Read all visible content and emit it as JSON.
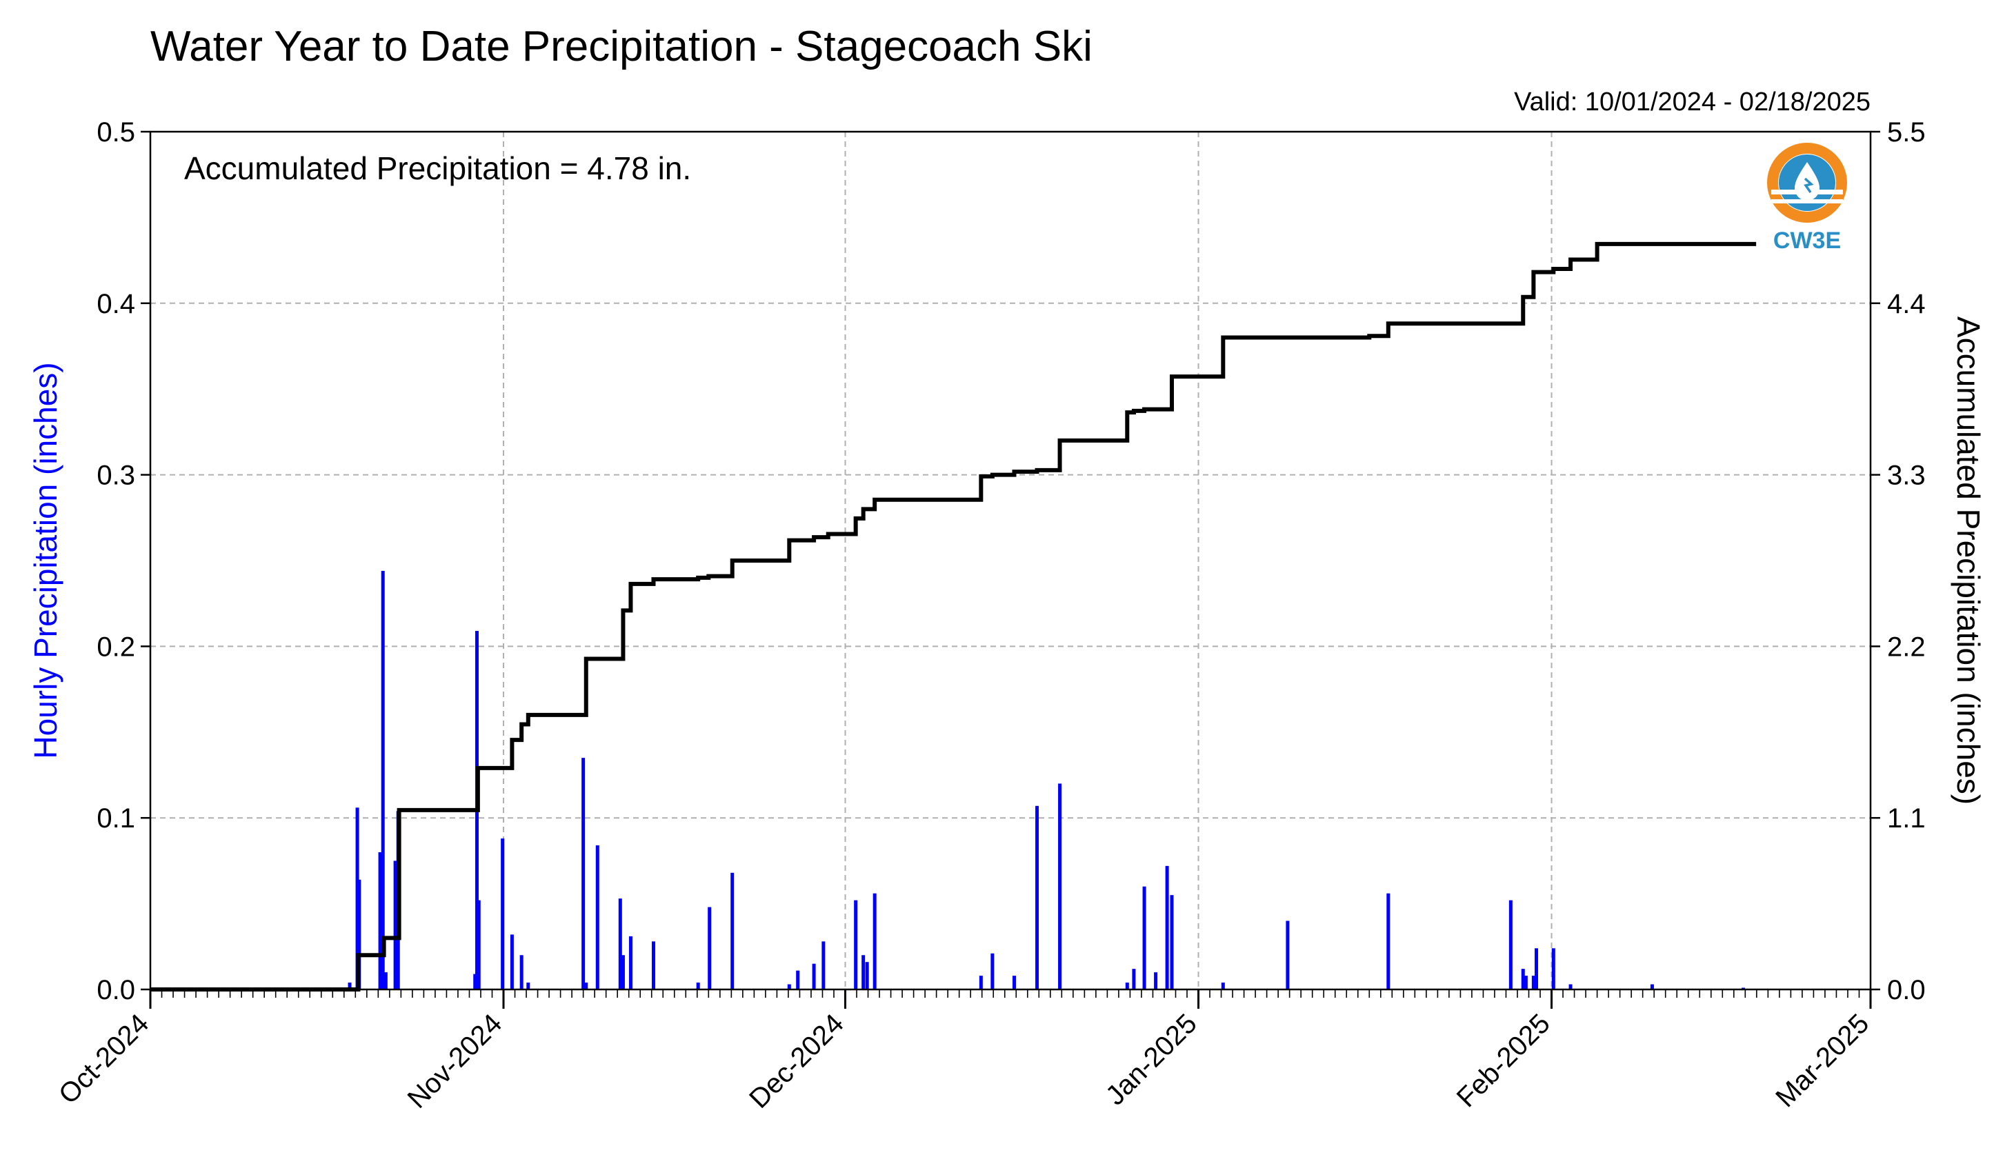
{
  "colors": {
    "hourly": "#0000ff",
    "accumulated": "#000000",
    "grid": "#b0b0b0",
    "logo_orange": "#f28c1e",
    "logo_blue": "#2a8fc7"
  },
  "logo": {
    "text": "CW3E",
    "icon": "water-drop-logo-icon"
  },
  "chart_data": {
    "type": "bar",
    "title": "Water Year to Date Precipitation - Stagecoach Ski",
    "subtitle": "Valid: 10/01/2024 - 02/18/2025",
    "annotation": "Accumulated Precipitation = 4.78 in.",
    "ylabel": "Hourly Precipitation (inches)",
    "y2label": "Accumulated Precipitation (inches)",
    "xlim": [
      "2024-10-01",
      "2025-03-01"
    ],
    "ylim": [
      0,
      0.5
    ],
    "y2lim": [
      0,
      5.5
    ],
    "yticks": [
      "0.0",
      "0.1",
      "0.2",
      "0.3",
      "0.4",
      "0.5"
    ],
    "y2ticks": [
      "0.0",
      "1.1",
      "2.2",
      "3.3",
      "4.4",
      "5.5"
    ],
    "xticks": [
      {
        "date": "2024-10-01",
        "label": "Oct-2024"
      },
      {
        "date": "2024-11-01",
        "label": "Nov-2024"
      },
      {
        "date": "2024-12-01",
        "label": "Dec-2024"
      },
      {
        "date": "2025-01-01",
        "label": "Jan-2025"
      },
      {
        "date": "2025-02-01",
        "label": "Feb-2025"
      },
      {
        "date": "2025-03-01",
        "label": "Mar-2025"
      }
    ],
    "grid": true,
    "series": [
      {
        "name": "Hourly Precipitation",
        "type": "bar",
        "axis": "left",
        "x": [
          "2024-10-18T12:00",
          "2024-10-19T04:00",
          "2024-10-19T08:00",
          "2024-10-21T04:00",
          "2024-10-21T10:00",
          "2024-10-21T16:00",
          "2024-10-22T12:00",
          "2024-10-22T18:00",
          "2024-10-29T12:00",
          "2024-10-29T16:00",
          "2024-10-29T20:00",
          "2024-10-31T22:00",
          "2024-11-01T18:00",
          "2024-11-02T14:00",
          "2024-11-03T04:00",
          "2024-11-08T00:00",
          "2024-11-08T06:00",
          "2024-11-09T06:00",
          "2024-11-11T06:00",
          "2024-11-11T12:00",
          "2024-11-12T04:00",
          "2024-11-14T04:00",
          "2024-11-18T02:00",
          "2024-11-19T02:00",
          "2024-11-21T02:00",
          "2024-11-26T02:00",
          "2024-11-26T20:00",
          "2024-11-28T06:00",
          "2024-11-29T02:00",
          "2024-12-01T22:00",
          "2024-12-02T14:00",
          "2024-12-02T22:00",
          "2024-12-03T14:00",
          "2024-12-12T22:00",
          "2024-12-13T22:00",
          "2024-12-15T20:00",
          "2024-12-17T20:00",
          "2024-12-19T20:00",
          "2024-12-25T18:00",
          "2024-12-26T08:00",
          "2024-12-27T06:00",
          "2024-12-28T06:00",
          "2024-12-29T06:00",
          "2024-12-29T16:00",
          "2025-01-03T04:00",
          "2025-01-08T20:00",
          "2025-01-17T16:00",
          "2025-01-28T10:00",
          "2025-01-29T12:00",
          "2025-01-29T18:00",
          "2025-01-30T10:00",
          "2025-01-30T16:00",
          "2025-02-01T04:00",
          "2025-02-02T16:00",
          "2025-02-09T20:00",
          "2025-02-17T20:00"
        ],
        "values": [
          0.004,
          0.106,
          0.064,
          0.08,
          0.244,
          0.01,
          0.075,
          0.104,
          0.009,
          0.209,
          0.052,
          0.088,
          0.032,
          0.02,
          0.004,
          0.135,
          0.004,
          0.084,
          0.053,
          0.02,
          0.031,
          0.028,
          0.004,
          0.048,
          0.068,
          0.003,
          0.011,
          0.015,
          0.028,
          0.052,
          0.02,
          0.016,
          0.056,
          0.008,
          0.021,
          0.008,
          0.107,
          0.12,
          0.004,
          0.012,
          0.06,
          0.01,
          0.072,
          0.055,
          0.004,
          0.04,
          0.056,
          0.052,
          0.012,
          0.008,
          0.008,
          0.024,
          0.024,
          0.003,
          0.003,
          0.001
        ]
      },
      {
        "name": "Accumulated Precipitation",
        "type": "line",
        "axis": "right",
        "x": [
          "2024-10-01T00:00",
          "2024-10-18T12:00",
          "2024-10-19T06:00",
          "2024-10-21T04:00",
          "2024-10-21T12:00",
          "2024-10-22T12:00",
          "2024-10-22T20:00",
          "2024-10-29T12:00",
          "2024-10-29T18:00",
          "2024-10-31T22:00",
          "2024-11-01T18:00",
          "2024-11-02T14:00",
          "2024-11-03T04:00",
          "2024-11-07T12:00",
          "2024-11-08T06:00",
          "2024-11-10T20:00",
          "2024-11-11T12:00",
          "2024-11-12T04:00",
          "2024-11-14T04:00",
          "2024-11-17T00:00",
          "2024-11-18T02:00",
          "2024-11-19T00:00",
          "2024-11-21T02:00",
          "2024-11-24T12:00",
          "2024-11-26T02:00",
          "2024-11-27T12:00",
          "2024-11-28T06:00",
          "2024-11-29T12:00",
          "2024-12-01T22:00",
          "2024-12-02T14:00",
          "2024-12-03T14:00",
          "2024-12-10T00:00",
          "2024-12-12T22:00",
          "2024-12-13T22:00",
          "2024-12-15T20:00",
          "2024-12-17T20:00",
          "2024-12-19T20:00",
          "2024-12-24T00:00",
          "2024-12-25T18:00",
          "2024-12-26T08:00",
          "2024-12-27T06:00",
          "2024-12-29T16:00",
          "2025-01-01T00:00",
          "2025-01-03T04:00",
          "2025-01-12T00:00",
          "2025-01-16T00:00",
          "2025-01-17T16:00",
          "2025-01-28T10:00",
          "2025-01-29T12:00",
          "2025-01-30T10:00",
          "2025-02-01T04:00",
          "2025-02-02T16:00",
          "2025-02-05T00:00",
          "2025-02-11T00:00",
          "2025-02-18T23:00"
        ],
        "values": [
          0.0,
          0.0,
          0.22,
          0.22,
          0.33,
          0.33,
          1.15,
          1.15,
          1.42,
          1.42,
          1.6,
          1.7,
          1.76,
          1.76,
          2.12,
          2.12,
          2.43,
          2.6,
          2.63,
          2.63,
          2.64,
          2.65,
          2.75,
          2.75,
          2.88,
          2.88,
          2.9,
          2.92,
          3.02,
          3.08,
          3.14,
          3.14,
          3.29,
          3.3,
          3.32,
          3.33,
          3.52,
          3.52,
          3.7,
          3.71,
          3.72,
          3.93,
          3.93,
          4.18,
          4.18,
          4.19,
          4.27,
          4.27,
          4.44,
          4.6,
          4.62,
          4.68,
          4.78,
          4.78,
          4.78
        ]
      }
    ]
  }
}
